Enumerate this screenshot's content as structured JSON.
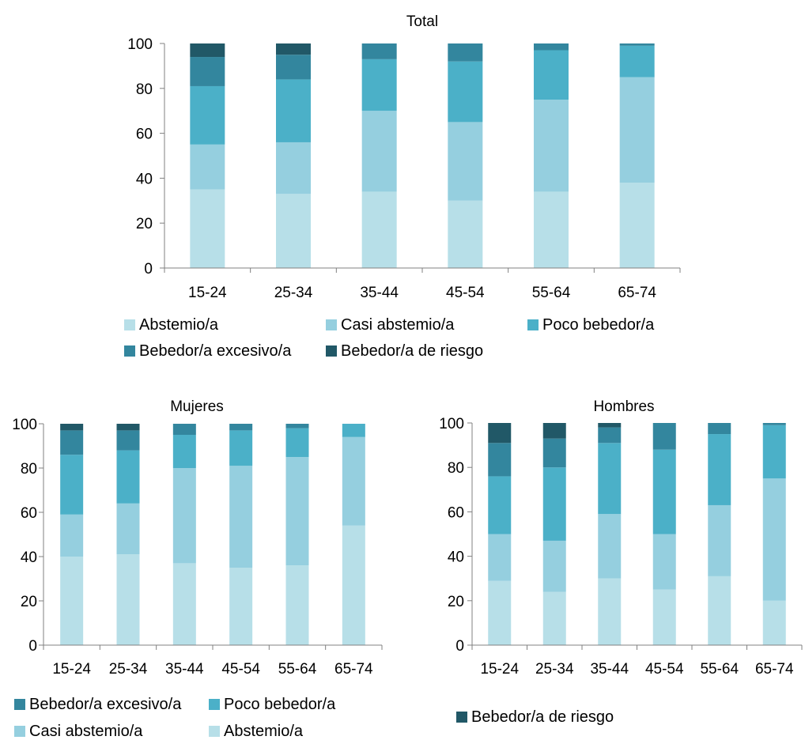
{
  "colors": {
    "abstemio": "#b7dfe8",
    "casi_abstemio": "#95cfdf",
    "poco_bebedor": "#4bb0c8",
    "bebedor_excesivo": "#33869e",
    "bebedor_riesgo": "#215867",
    "axis": "#808080"
  },
  "chart_data": [
    {
      "type": "bar",
      "stacked": true,
      "title": "Total",
      "categories": [
        "15-24",
        "25-34",
        "35-44",
        "45-54",
        "55-64",
        "65-74"
      ],
      "ylim": [
        0,
        100
      ],
      "yticks": [
        0,
        20,
        40,
        60,
        80,
        100
      ],
      "series": [
        {
          "name": "Abstemio/a",
          "color_key": "abstemio",
          "values": [
            35,
            33,
            34,
            30,
            34,
            38
          ]
        },
        {
          "name": "Casi abstemio/a",
          "color_key": "casi_abstemio",
          "values": [
            20,
            23,
            36,
            35,
            41,
            47
          ]
        },
        {
          "name": "Poco bebedor/a",
          "color_key": "poco_bebedor",
          "values": [
            26,
            28,
            23,
            27,
            22,
            14
          ]
        },
        {
          "name": "Bebedor/a excesivo/a",
          "color_key": "bebedor_excesivo",
          "values": [
            13,
            11,
            7,
            8,
            3,
            1
          ]
        },
        {
          "name": "Bebedor/a de riesgo",
          "color_key": "bebedor_riesgo",
          "values": [
            6,
            5,
            0,
            0,
            0,
            0
          ]
        }
      ],
      "legend": [
        {
          "name": "Abstemio/a",
          "color_key": "abstemio"
        },
        {
          "name": "Casi abstemio/a",
          "color_key": "casi_abstemio"
        },
        {
          "name": "Poco bebedor/a",
          "color_key": "poco_bebedor"
        },
        {
          "name": "Bebedor/a excesivo/a",
          "color_key": "bebedor_excesivo"
        },
        {
          "name": "Bebedor/a de riesgo",
          "color_key": "bebedor_riesgo"
        }
      ],
      "legend_position": "bottom"
    },
    {
      "type": "bar",
      "stacked": true,
      "title": "Mujeres",
      "categories": [
        "15-24",
        "25-34",
        "35-44",
        "45-54",
        "55-64",
        "65-74"
      ],
      "ylim": [
        0,
        100
      ],
      "yticks": [
        0,
        20,
        40,
        60,
        80,
        100
      ],
      "series": [
        {
          "name": "Abstemio/a",
          "color_key": "abstemio",
          "values": [
            40,
            41,
            37,
            35,
            36,
            54
          ]
        },
        {
          "name": "Casi abstemio/a",
          "color_key": "casi_abstemio",
          "values": [
            19,
            23,
            43,
            46,
            49,
            40
          ]
        },
        {
          "name": "Poco bebedor/a",
          "color_key": "poco_bebedor",
          "values": [
            27,
            24,
            15,
            16,
            13,
            6
          ]
        },
        {
          "name": "Bebedor/a excesivo/a",
          "color_key": "bebedor_excesivo",
          "values": [
            11,
            9,
            5,
            3,
            2,
            0
          ]
        },
        {
          "name": "Bebedor/a de riesgo",
          "color_key": "bebedor_riesgo",
          "values": [
            3,
            3,
            0,
            0,
            0,
            0
          ]
        }
      ],
      "legend": [
        {
          "name": "Bebedor/a excesivo/a",
          "color_key": "bebedor_excesivo"
        },
        {
          "name": "Poco bebedor/a",
          "color_key": "poco_bebedor"
        },
        {
          "name": "Casi abstemio/a",
          "color_key": "casi_abstemio"
        },
        {
          "name": "Abstemio/a",
          "color_key": "abstemio"
        }
      ],
      "legend_position": "bottom-left"
    },
    {
      "type": "bar",
      "stacked": true,
      "title": "Hombres",
      "categories": [
        "15-24",
        "25-34",
        "35-44",
        "45-54",
        "55-64",
        "65-74"
      ],
      "ylim": [
        0,
        100
      ],
      "yticks": [
        0,
        20,
        40,
        60,
        80,
        100
      ],
      "series": [
        {
          "name": "Abstemio/a",
          "color_key": "abstemio",
          "values": [
            29,
            24,
            30,
            25,
            31,
            20
          ]
        },
        {
          "name": "Casi abstemio/a",
          "color_key": "casi_abstemio",
          "values": [
            21,
            23,
            29,
            25,
            32,
            55
          ]
        },
        {
          "name": "Poco bebedor/a",
          "color_key": "poco_bebedor",
          "values": [
            26,
            33,
            32,
            38,
            32,
            24
          ]
        },
        {
          "name": "Bebedor/a excesivo/a",
          "color_key": "bebedor_excesivo",
          "values": [
            15,
            13,
            7,
            12,
            5,
            1
          ]
        },
        {
          "name": "Bebedor/a de riesgo",
          "color_key": "bebedor_riesgo",
          "values": [
            9,
            7,
            2,
            0,
            0,
            0
          ]
        }
      ],
      "legend": [
        {
          "name": "Bebedor/a de riesgo",
          "color_key": "bebedor_riesgo"
        }
      ],
      "legend_position": "bottom-right"
    }
  ]
}
